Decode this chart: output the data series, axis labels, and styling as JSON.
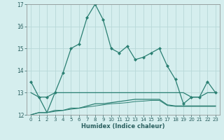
{
  "xlabel": "Humidex (Indice chaleur)",
  "x": [
    0,
    1,
    2,
    3,
    4,
    5,
    6,
    7,
    8,
    9,
    10,
    11,
    12,
    13,
    14,
    15,
    16,
    17,
    18,
    19,
    20,
    21,
    22,
    23
  ],
  "line1": [
    13.5,
    12.8,
    12.8,
    13.0,
    13.9,
    15.0,
    15.2,
    16.4,
    17.0,
    16.3,
    15.0,
    14.8,
    15.1,
    14.5,
    14.6,
    14.8,
    15.0,
    14.2,
    13.6,
    12.5,
    12.8,
    12.8,
    13.5,
    13.0
  ],
  "line2": [
    13.0,
    12.8,
    12.1,
    13.0,
    13.0,
    13.0,
    13.0,
    13.0,
    13.0,
    13.0,
    13.0,
    13.0,
    13.0,
    13.0,
    13.0,
    13.0,
    13.0,
    13.0,
    13.0,
    13.0,
    12.8,
    12.8,
    13.0,
    13.0
  ],
  "line3": [
    12.0,
    12.1,
    12.1,
    12.2,
    12.2,
    12.3,
    12.3,
    12.4,
    12.5,
    12.5,
    12.55,
    12.6,
    12.65,
    12.7,
    12.7,
    12.7,
    12.7,
    12.45,
    12.4,
    12.4,
    12.4,
    12.4,
    12.4,
    12.4
  ],
  "line4": [
    12.0,
    12.1,
    12.1,
    12.15,
    12.2,
    12.25,
    12.3,
    12.35,
    12.4,
    12.45,
    12.5,
    12.52,
    12.55,
    12.6,
    12.62,
    12.65,
    12.65,
    12.42,
    12.38,
    12.38,
    12.38,
    12.38,
    12.38,
    12.38
  ],
  "line_color": "#2a7f72",
  "bg_color": "#d5eeee",
  "grid_color": "#b8d8d8",
  "ylim": [
    12,
    17
  ],
  "xlim": [
    -0.5,
    23.5
  ],
  "yticks": [
    12,
    13,
    14,
    15,
    16,
    17
  ]
}
